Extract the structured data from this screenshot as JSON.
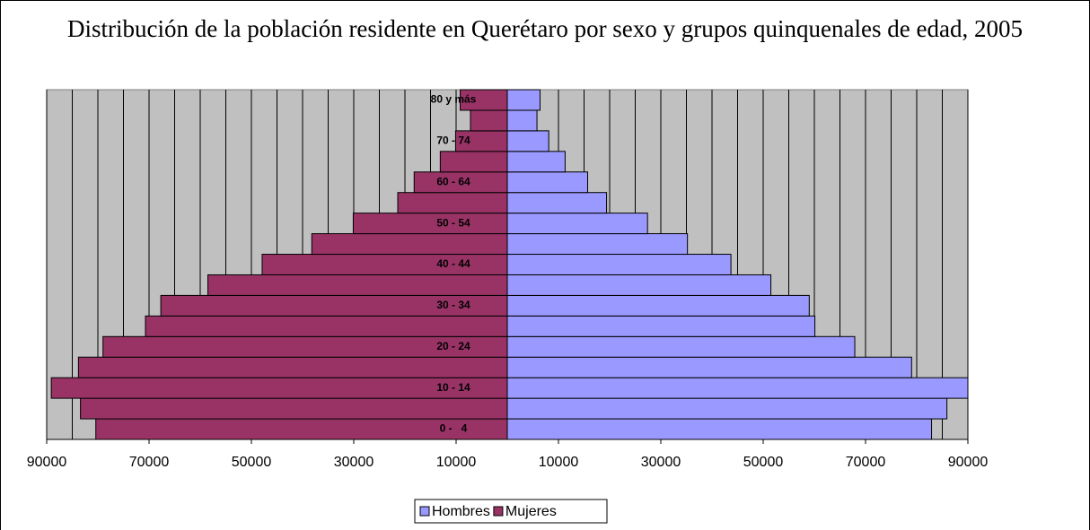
{
  "chart_data": {
    "type": "pyramid",
    "title": "Distribución de la población residente en Querétaro por sexo y grupos quinquenales de edad, 2005",
    "categories": [
      "0 -   4",
      null,
      "10 - 14",
      null,
      "20 - 24",
      null,
      "30 - 34",
      null,
      "40 - 44",
      null,
      "50 - 54",
      null,
      "60 - 64",
      null,
      "70 - 74",
      null,
      "80 y más"
    ],
    "series": [
      {
        "name": "Hombres",
        "color": "#9999ff",
        "values": [
          82900,
          85900,
          90000,
          79000,
          67900,
          60100,
          59000,
          51500,
          43700,
          35200,
          27400,
          19400,
          15700,
          11300,
          8100,
          5800,
          6400
        ]
      },
      {
        "name": "Mujeres",
        "color": "#993366",
        "values": [
          -80400,
          -83400,
          -89100,
          -83800,
          -79000,
          -70700,
          -67700,
          -58500,
          -47900,
          -38200,
          -30100,
          -21400,
          -18200,
          -13100,
          -10100,
          -7200,
          -9200
        ]
      }
    ],
    "xlim": [
      -90000,
      90000
    ],
    "xticks": [
      {
        "value": -90000,
        "label": "90000"
      },
      {
        "value": -70000,
        "label": "70000"
      },
      {
        "value": -50000,
        "label": "50000"
      },
      {
        "value": -30000,
        "label": "30000"
      },
      {
        "value": -10000,
        "label": "10000"
      },
      10000,
      30000,
      50000,
      70000,
      90000
    ],
    "minor_gridlines": [
      -90000,
      -85000,
      -80000,
      -75000,
      -70000,
      -65000,
      -60000,
      -55000,
      -50000,
      -45000,
      -40000,
      -35000,
      -30000,
      -25000,
      -20000,
      -15000,
      -10000,
      -5000,
      0,
      5000,
      10000,
      15000,
      20000,
      25000,
      30000,
      35000,
      40000,
      45000,
      50000,
      55000,
      60000,
      65000,
      70000,
      75000,
      80000,
      85000,
      90000
    ],
    "plot_background": "#c0c0c0",
    "legend": "bottom"
  }
}
